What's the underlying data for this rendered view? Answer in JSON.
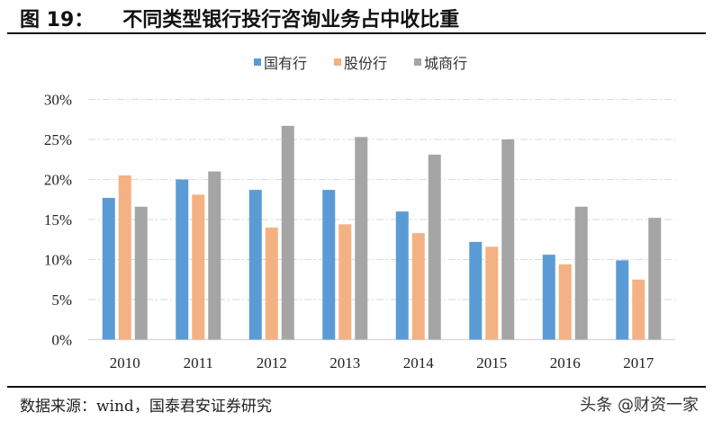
{
  "figure": {
    "number_label": "图 19：",
    "title": "不同类型银行投行咨询业务占中收比重",
    "source": "数据来源：wind，国泰君安证券研究",
    "watermark": "头条 @财资一家"
  },
  "chart_data": {
    "type": "bar",
    "title": "不同类型银行投行咨询业务占中收比重",
    "categories": [
      "2010",
      "2011",
      "2012",
      "2013",
      "2014",
      "2015",
      "2016",
      "2017"
    ],
    "series": [
      {
        "name": "国有行",
        "color": "#5b9bd5",
        "values": [
          17.7,
          20.0,
          18.7,
          18.7,
          16.0,
          12.2,
          10.6,
          9.9
        ]
      },
      {
        "name": "股份行",
        "color": "#f4b183",
        "values": [
          20.5,
          18.1,
          14.0,
          14.4,
          13.3,
          11.6,
          9.4,
          7.5
        ]
      },
      {
        "name": "城商行",
        "color": "#a5a5a5",
        "values": [
          16.6,
          21.0,
          26.7,
          25.3,
          23.1,
          25.0,
          16.6,
          15.2
        ]
      }
    ],
    "ylim": [
      0,
      30
    ],
    "yticks": [
      "0%",
      "5%",
      "10%",
      "15%",
      "20%",
      "25%",
      "30%"
    ],
    "ytick_values": [
      0,
      5,
      10,
      15,
      20,
      25,
      30
    ],
    "xlabel": "",
    "ylabel": "",
    "grid": true,
    "grid_style": "dashed horizontal",
    "legend_position": "top-center"
  }
}
